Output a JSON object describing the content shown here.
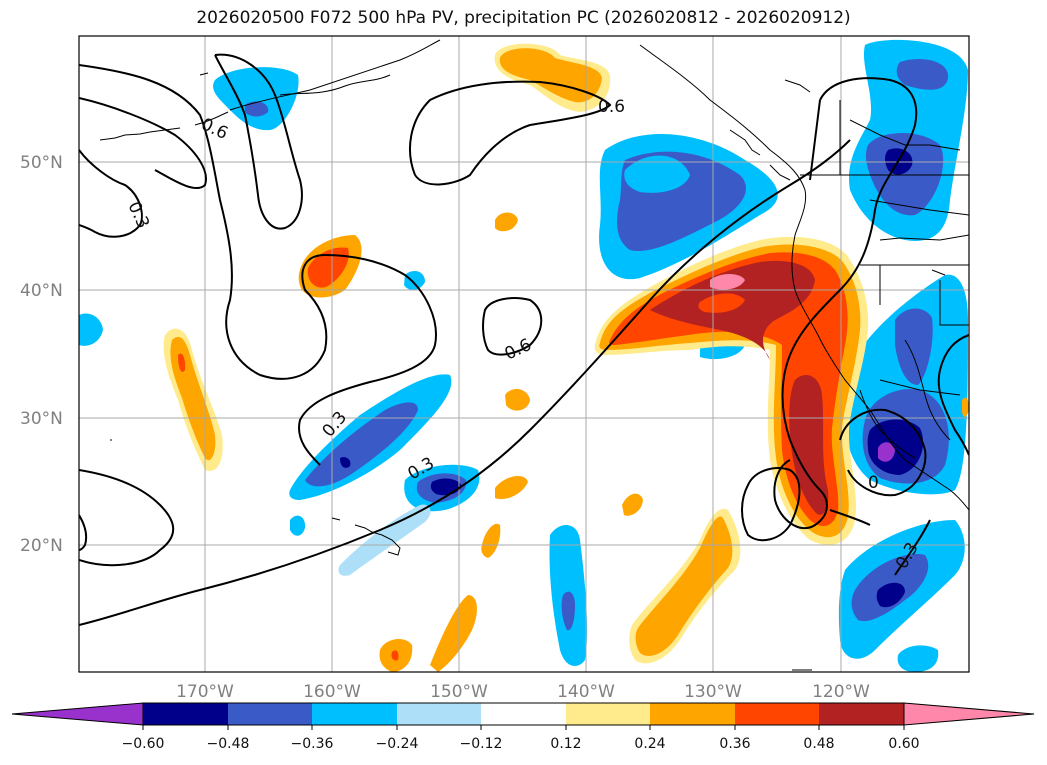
{
  "title": "2026020500 F072 500 hPa PV, precipitation PC (2026020812 - 2026020912)",
  "map": {
    "lat_labels": [
      "50°N",
      "40°N",
      "30°N",
      "20°N"
    ],
    "lon_labels": [
      "170°W",
      "160°W",
      "150°W",
      "140°W",
      "130°W",
      "120°W"
    ],
    "contour_labels": [
      "0.6",
      "0.3",
      "0.6",
      "0.6",
      "0.3",
      "0.3",
      "0",
      "0.3"
    ]
  },
  "colorbar": {
    "ticks": [
      "−0.60",
      "−0.48",
      "−0.36",
      "−0.24",
      "−0.12",
      "0.12",
      "0.24",
      "0.36",
      "0.48",
      "0.60"
    ],
    "colors": {
      "under": "#9932CC",
      "neg_060_048": "#00008B",
      "neg_048_036": "#3A5BC7",
      "neg_036_024": "#00BFFF",
      "neg_024_012": "#ADDFF8",
      "neutral": "#FFFFFF",
      "pos_012_024": "#FFEB8C",
      "pos_024_036": "#FFA500",
      "pos_036_048": "#FF4500",
      "pos_048_060": "#B22222",
      "over": "#FF88AA"
    }
  }
}
